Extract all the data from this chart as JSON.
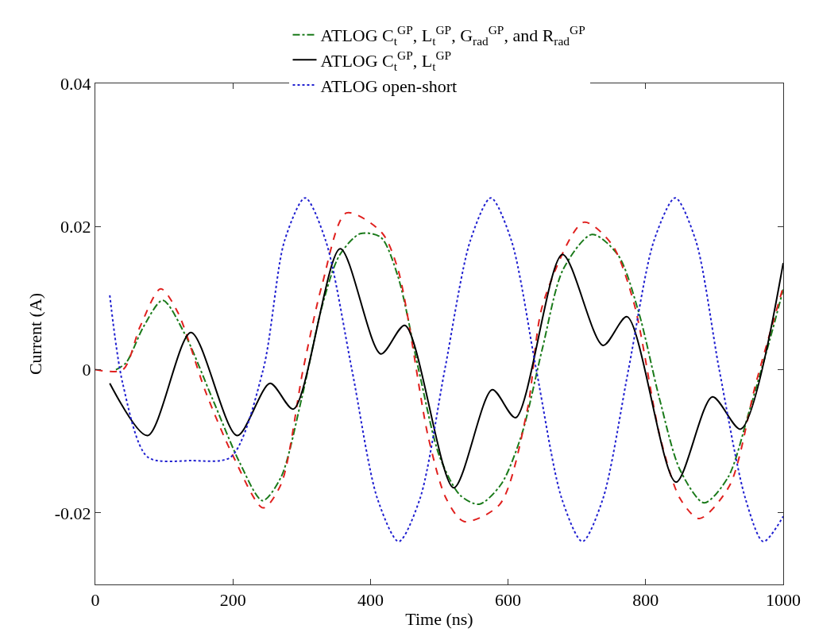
{
  "chart_data": {
    "type": "line",
    "xlabel": "Time (ns)",
    "ylabel": "Current (A)",
    "xlim": [
      0,
      1000
    ],
    "xticks": [
      0,
      200,
      400,
      600,
      800,
      1000
    ],
    "ylim": [
      -0.03,
      0.04
    ],
    "yticks": [
      -0.02,
      0,
      0.02,
      0.04
    ],
    "grid": false,
    "legend": "top",
    "marker": "none",
    "series": [
      {
        "name": "ATLOG C$_{t}$$^{GP}$, L$_{t}$$^{GP}$, G$_{rad}$$^{GP}$, and R$_{rad}$$^{GP}$",
        "color": "#1a7a1a",
        "line_style": "dashdot",
        "x": [
          30,
          45,
          70,
          98,
          130,
          170,
          210,
          243,
          270,
          300,
          330,
          355,
          385,
          415,
          440,
          470,
          500,
          530,
          558,
          590,
          620,
          650,
          680,
          722,
          760,
          790,
          820,
          850,
          885,
          920,
          950,
          980,
          1000
        ],
        "values": [
          0,
          0.001,
          0.006,
          0.0097,
          0.005,
          -0.004,
          -0.013,
          -0.0183,
          -0.015,
          -0.004,
          0.009,
          0.016,
          0.019,
          0.0185,
          0.013,
          0.0,
          -0.012,
          -0.0175,
          -0.0188,
          -0.016,
          -0.009,
          0.003,
          0.014,
          0.0189,
          0.016,
          0.008,
          -0.004,
          -0.014,
          -0.0186,
          -0.015,
          -0.006,
          0.004,
          0.0112
        ]
      },
      {
        "color": "#e0201e",
        "line_style": "dashed",
        "x": [
          0,
          40,
          65,
          95,
          120,
          160,
          200,
          244,
          270,
          302,
          330,
          365,
          416,
          440,
          484,
          510,
          536,
          588,
          628,
          651,
          710,
          751,
          783,
          821,
          850,
          878,
          922,
          960,
          1000
        ],
        "values": [
          0,
          0,
          0.006,
          0.0113,
          0.008,
          -0.003,
          -0.012,
          -0.0193,
          -0.016,
          0,
          0.012,
          0.0219,
          0.0192,
          0.014,
          -0.0094,
          -0.018,
          -0.0212,
          -0.0188,
          -0.0056,
          0.0093,
          0.0206,
          0.0175,
          0.0093,
          -0.0094,
          -0.018,
          -0.0208,
          -0.0162,
          -0.002,
          0.0116
        ]
      },
      {
        "name": "ATLOG C$_{t}$$^{GP}$, L$_{t}$$^{GP}$",
        "color": "#000000",
        "line_style": "solid",
        "x": [
          21,
          76,
          139,
          206,
          254,
          288,
          356,
          415,
          450,
          521,
          577,
          611,
          679,
          738,
          773,
          844,
          897,
          938,
          1000
        ],
        "values": [
          -0.0019,
          -0.0092,
          0.0052,
          -0.0092,
          -0.0019,
          -0.0055,
          0.0169,
          0.0022,
          0.0062,
          -0.0165,
          -0.0028,
          -0.0067,
          0.0161,
          0.0034,
          0.0074,
          -0.0157,
          -0.0038,
          -0.0083,
          0.0149
        ]
      },
      {
        "name": "ATLOG open-short",
        "color": "#2020d0",
        "line_style": "dotted",
        "x": [
          21,
          40,
          76,
          140,
          197,
          244,
          275,
          305,
          335,
          373,
          410,
          441,
          472,
          508,
          545,
          575,
          605,
          641,
          678,
          708,
          738,
          775,
          812,
          843,
          873,
          907,
          945,
          971,
          1000
        ],
        "values": [
          0.0104,
          -0.002,
          -0.0122,
          -0.0127,
          -0.0122,
          0,
          0.018,
          0.024,
          0.018,
          0,
          -0.018,
          -0.024,
          -0.018,
          0,
          0.018,
          0.024,
          0.018,
          0,
          -0.018,
          -0.024,
          -0.018,
          0,
          0.018,
          0.024,
          0.018,
          0,
          -0.018,
          -0.024,
          -0.0205
        ]
      }
    ]
  }
}
